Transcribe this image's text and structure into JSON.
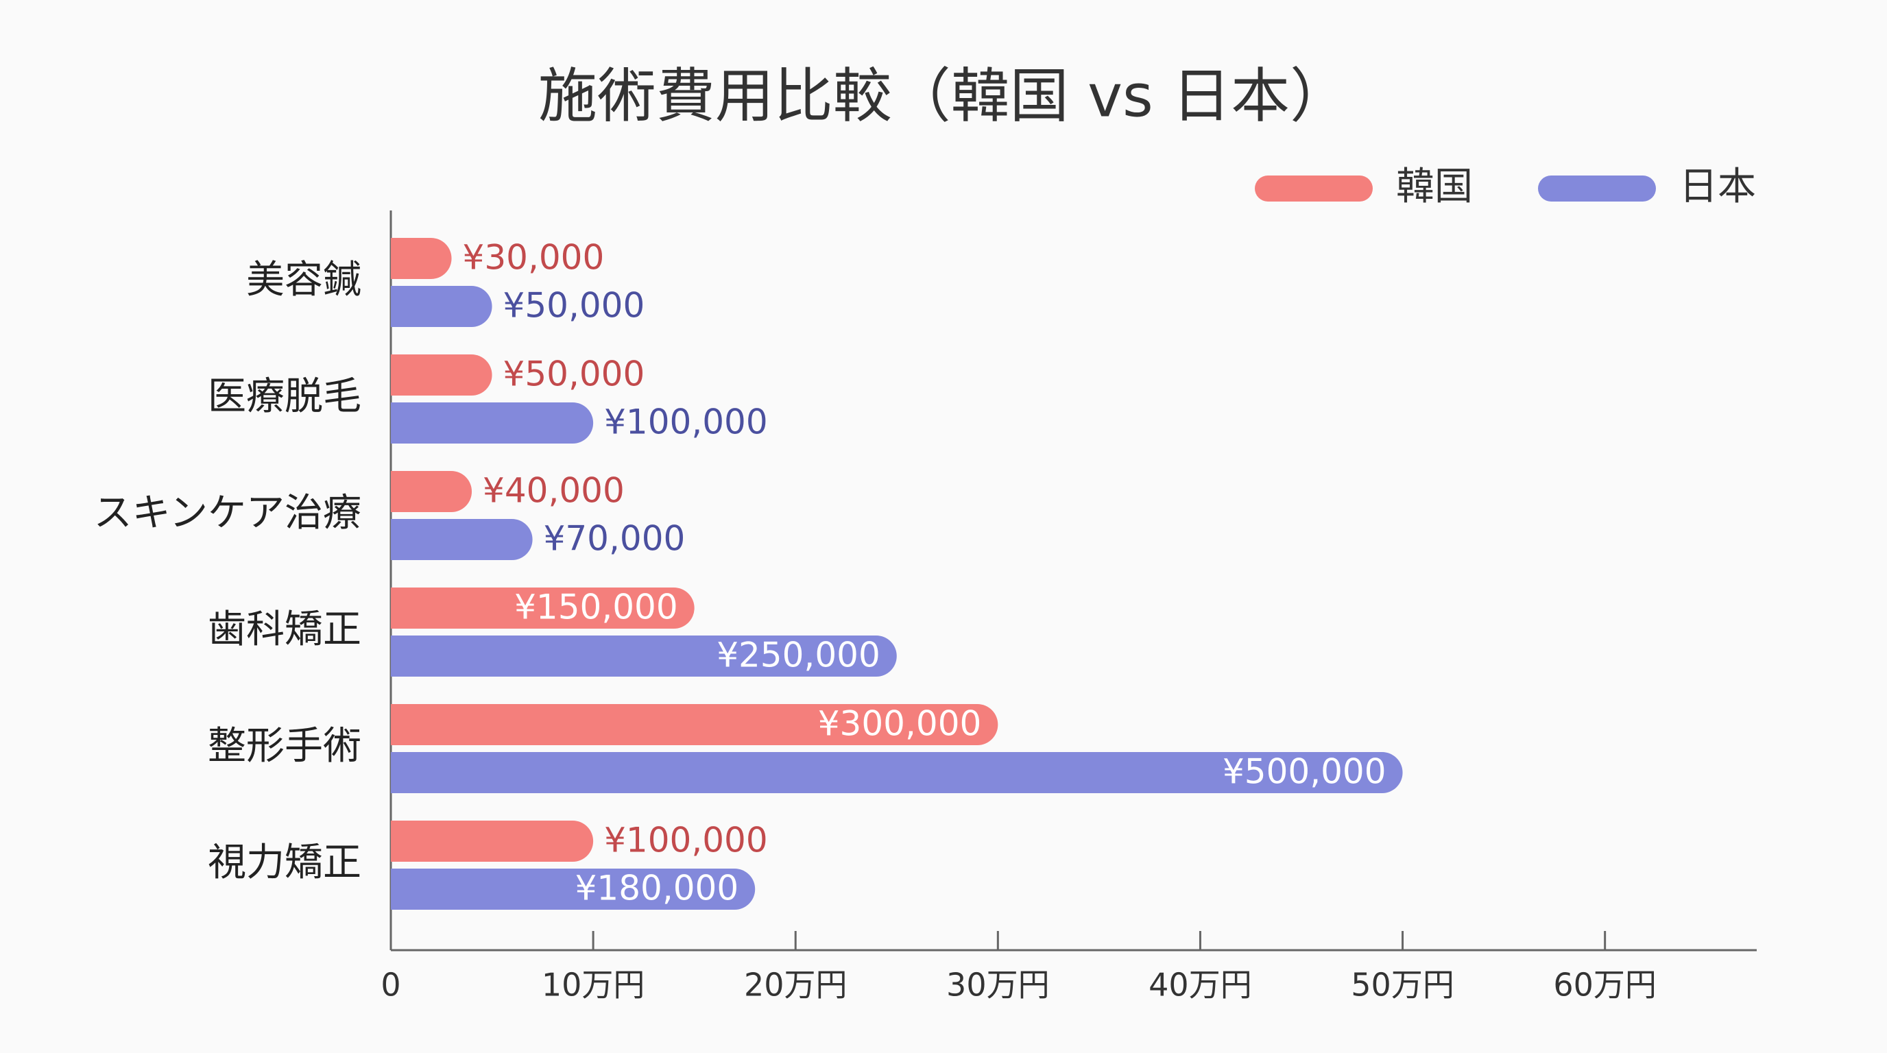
{
  "chart_data": {
    "type": "hbar",
    "title": "施術費用比較（韓国 vs 日本）",
    "categories": [
      "美容鍼",
      "医療脱毛",
      "スキンケア治療",
      "歯科矯正",
      "整形手術",
      "視力矯正"
    ],
    "series": [
      {
        "name": "韓国",
        "color": "#f47f7c",
        "label_color": "#c24a4c",
        "values": [
          30000,
          50000,
          40000,
          150000,
          300000,
          100000
        ],
        "value_labels": [
          "¥30,000",
          "¥50,000",
          "¥40,000",
          "¥150,000",
          "¥300,000",
          "¥100,000"
        ]
      },
      {
        "name": "日本",
        "color": "#8389db",
        "label_color": "#4b509f",
        "values": [
          50000,
          100000,
          70000,
          250000,
          500000,
          180000
        ],
        "value_labels": [
          "¥50,000",
          "¥100,000",
          "¥70,000",
          "¥250,000",
          "¥500,000",
          "¥180,000"
        ]
      }
    ],
    "xlim": [
      0,
      675000
    ],
    "xticks": [
      0,
      {
        "value": 100000,
        "label": "10万円"
      },
      {
        "value": 200000,
        "label": "20万円"
      },
      {
        "value": 300000,
        "label": "30万円"
      },
      {
        "value": 400000,
        "label": "40万円"
      },
      {
        "value": 500000,
        "label": "50万円"
      },
      {
        "value": 600000,
        "label": "60万円"
      }
    ],
    "legend": "top-right"
  }
}
